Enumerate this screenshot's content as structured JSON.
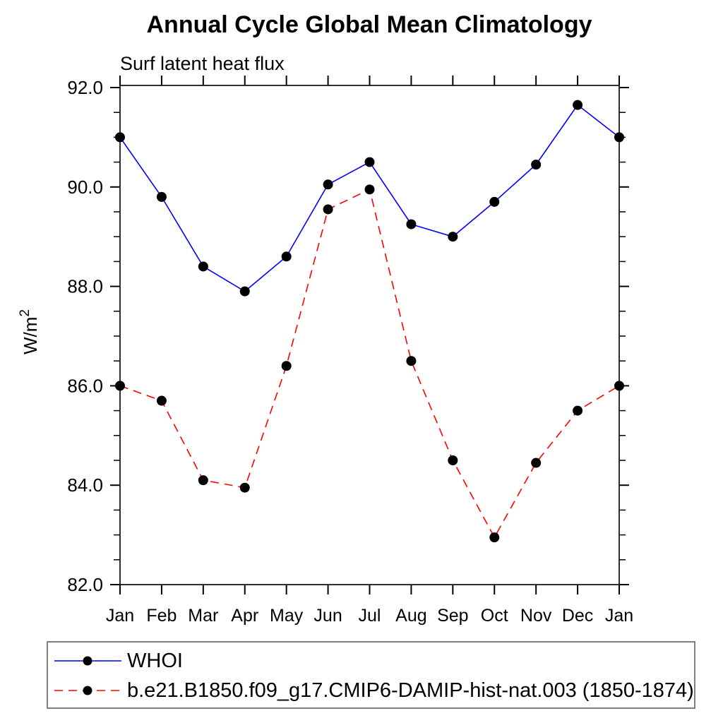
{
  "chart_data": {
    "type": "line",
    "title": "Annual Cycle Global Mean Climatology",
    "subtitle": "Surf latent heat flux",
    "ylabel_base": "W/m",
    "ylabel_exponent": "2",
    "categories": [
      "Jan",
      "Feb",
      "Mar",
      "Apr",
      "May",
      "Jun",
      "Jul",
      "Aug",
      "Sep",
      "Oct",
      "Nov",
      "Dec",
      "Jan"
    ],
    "y_axis": {
      "min": 82.0,
      "max": 92.0,
      "major_tick_step": 2.0,
      "minor_tick_step": 0.5,
      "tick_labels": [
        "82.0",
        "84.0",
        "86.0",
        "88.0",
        "90.0",
        "92.0"
      ]
    },
    "grid": false,
    "legend_position": "bottom-left-box",
    "series": [
      {
        "name": "WHOI",
        "color": "#0000ff",
        "line_style": "solid",
        "marker": "filled-circle",
        "marker_color": "#000000",
        "values": [
          91.0,
          89.8,
          88.4,
          87.9,
          88.6,
          90.05,
          90.5,
          89.25,
          89.0,
          89.7,
          90.45,
          91.65,
          91.0
        ]
      },
      {
        "name": "b.e21.B1850.f09_g17.CMIP6-DAMIP-hist-nat.003 (1850-1874)",
        "color": "#ff0000",
        "line_style": "dashed",
        "marker": "filled-circle",
        "marker_color": "#000000",
        "values": [
          86.0,
          85.7,
          84.1,
          83.95,
          86.4,
          89.55,
          89.95,
          86.5,
          84.5,
          82.95,
          84.45,
          85.5,
          86.0
        ]
      }
    ]
  }
}
